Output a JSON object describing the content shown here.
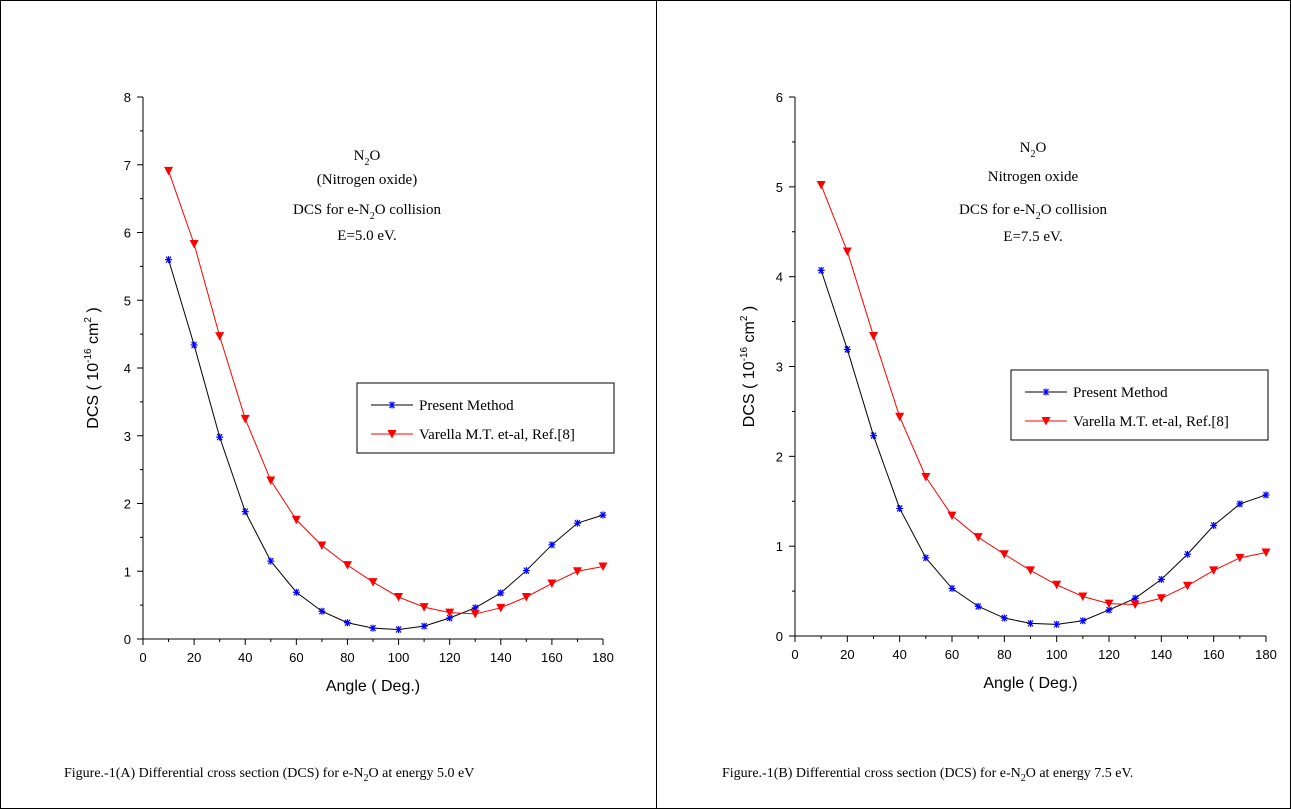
{
  "chart_data": [
    {
      "type": "line",
      "annotation": {
        "line1_main": "N",
        "line1_sub": "2",
        "line1_tail": "O",
        "line2": "(Nitrogen oxide)",
        "line3_main": "DCS for e-N",
        "line3_sub": "2",
        "line3_tail": "O collision",
        "line4": "E=5.0 eV."
      },
      "xlabel": "Angle ( Deg.)",
      "ylabel_prefix": "DCS ( 10",
      "ylabel_exp1": "-16",
      "ylabel_mid": " cm",
      "ylabel_exp2": "2",
      "ylabel_suffix": " )",
      "xlim": [
        0,
        180
      ],
      "ylim": [
        0,
        8
      ],
      "xticks": [
        "0",
        "20",
        "40",
        "60",
        "80",
        "100",
        "120",
        "140",
        "160",
        "180"
      ],
      "yticks": [
        "0",
        "1",
        "2",
        "3",
        "4",
        "5",
        "6",
        "7",
        "8"
      ],
      "legend_position": "right-middle",
      "series": [
        {
          "name": "Present Method",
          "color": "#0000ff",
          "line_color": "#000000",
          "marker": "asterisk",
          "x": [
            10,
            20,
            30,
            40,
            50,
            60,
            70,
            80,
            90,
            100,
            110,
            120,
            130,
            140,
            150,
            160,
            170,
            180
          ],
          "y": [
            5.6,
            4.34,
            2.98,
            1.88,
            1.15,
            0.69,
            0.41,
            0.24,
            0.16,
            0.14,
            0.19,
            0.31,
            0.46,
            0.68,
            1.01,
            1.39,
            1.71,
            1.83
          ]
        },
        {
          "name": "Varella M.T. et-al, Ref.[8]",
          "color": "#ff0000",
          "line_color": "#ff0000",
          "marker": "triangle-down",
          "x": [
            10,
            20,
            30,
            40,
            50,
            60,
            70,
            80,
            90,
            100,
            110,
            120,
            130,
            140,
            150,
            160,
            170,
            180
          ],
          "y": [
            6.91,
            5.83,
            4.47,
            3.25,
            2.34,
            1.76,
            1.38,
            1.09,
            0.84,
            0.62,
            0.47,
            0.39,
            0.37,
            0.46,
            0.62,
            0.82,
            1.0,
            1.07
          ]
        }
      ]
    },
    {
      "type": "line",
      "annotation": {
        "line1_main": "N",
        "line1_sub": "2",
        "line1_tail": "O",
        "line2": "Nitrogen oxide",
        "line3_main": "DCS for e-N",
        "line3_sub": "2",
        "line3_tail": "O collision",
        "line4": "E=7.5 eV."
      },
      "xlabel": "Angle ( Deg.)",
      "ylabel_prefix": "DCS ( 10",
      "ylabel_exp1": "-16",
      "ylabel_mid": " cm",
      "ylabel_exp2": "2",
      "ylabel_suffix": " )",
      "xlim": [
        0,
        180
      ],
      "ylim": [
        0,
        6
      ],
      "xticks": [
        "0",
        "20",
        "40",
        "60",
        "80",
        "100",
        "120",
        "140",
        "160",
        "180"
      ],
      "yticks": [
        "0",
        "1",
        "2",
        "3",
        "4",
        "5",
        "6"
      ],
      "legend_position": "right-middle",
      "series": [
        {
          "name": "Present Method",
          "color": "#0000ff",
          "line_color": "#000000",
          "marker": "asterisk",
          "x": [
            10,
            20,
            30,
            40,
            50,
            60,
            70,
            80,
            90,
            100,
            110,
            120,
            130,
            140,
            150,
            160,
            170,
            180
          ],
          "y": [
            4.07,
            3.19,
            2.23,
            1.42,
            0.87,
            0.53,
            0.33,
            0.2,
            0.14,
            0.13,
            0.17,
            0.29,
            0.42,
            0.63,
            0.91,
            1.23,
            1.47,
            1.57
          ]
        },
        {
          "name": "Varella M.T. et-al, Ref.[8]",
          "color": "#ff0000",
          "line_color": "#ff0000",
          "marker": "triangle-down",
          "x": [
            10,
            20,
            30,
            40,
            50,
            60,
            70,
            80,
            90,
            100,
            110,
            120,
            130,
            140,
            150,
            160,
            170,
            180
          ],
          "y": [
            5.02,
            4.28,
            3.34,
            2.44,
            1.77,
            1.34,
            1.1,
            0.91,
            0.73,
            0.57,
            0.44,
            0.36,
            0.35,
            0.42,
            0.56,
            0.73,
            0.87,
            0.93
          ]
        }
      ]
    }
  ],
  "captions": [
    {
      "prefix": "Figure.-1(A) Differential cross section (DCS) for e-N",
      "sub": "2",
      "suffix": "O at energy 5.0 eV"
    },
    {
      "prefix": "Figure.-1(B)  Differential cross section (DCS) for e-N",
      "sub": "2",
      "suffix": "O at energy 7.5 eV."
    }
  ]
}
